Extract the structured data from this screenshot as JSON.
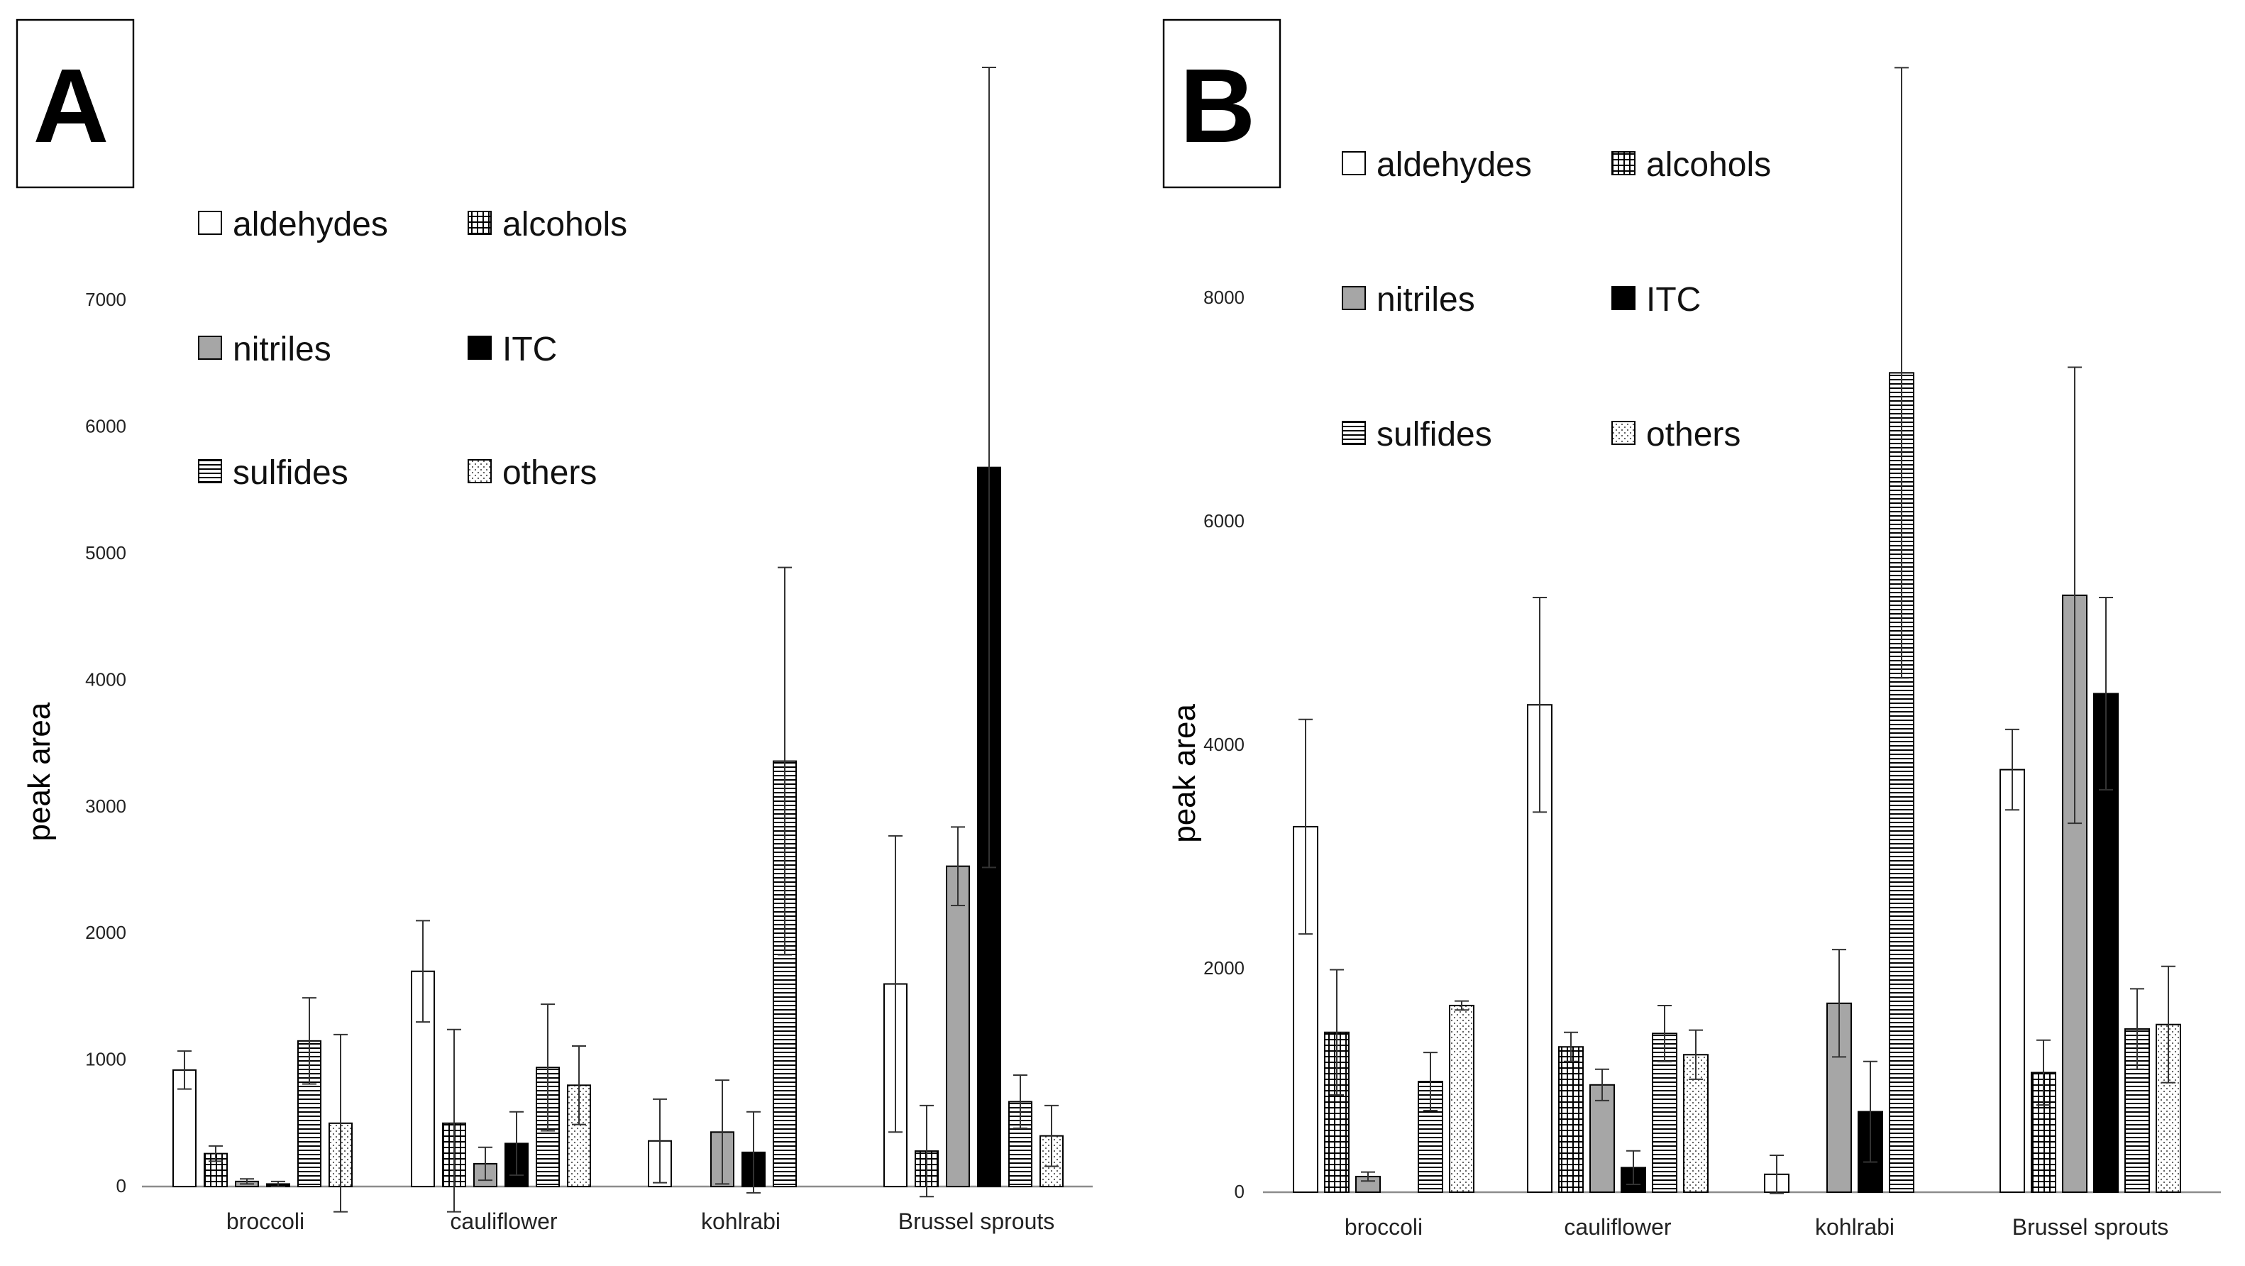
{
  "chart_data": [
    {
      "panel_label": "A",
      "type": "bar",
      "xlabel": "",
      "ylabel": "peak area",
      "ylim": [
        0,
        9000
      ],
      "yticks": [
        0,
        1000,
        2000,
        3000,
        4000,
        5000,
        6000,
        7000
      ],
      "gridlines": false,
      "legend_placement": "top-left",
      "categories": [
        "broccoli",
        "cauliflower",
        "kohlrabi",
        "Brussel sprouts"
      ],
      "series": [
        {
          "name": "aldehydes",
          "pattern": "white",
          "values": [
            920,
            1700,
            360,
            1600
          ],
          "errors": [
            150,
            400,
            330,
            1170
          ]
        },
        {
          "name": "alcohols",
          "pattern": "grid",
          "values": [
            260,
            500,
            0,
            280
          ],
          "errors": [
            60,
            740,
            0,
            360
          ]
        },
        {
          "name": "nitriles",
          "pattern": "gray",
          "values": [
            40,
            180,
            430,
            2530
          ],
          "errors": [
            20,
            130,
            410,
            310
          ]
        },
        {
          "name": "ITC",
          "pattern": "black",
          "values": [
            20,
            340,
            270,
            5680
          ],
          "errors": [
            20,
            250,
            320,
            3160
          ]
        },
        {
          "name": "sulfides",
          "pattern": "hlines",
          "values": [
            1150,
            940,
            3360,
            670
          ],
          "errors": [
            340,
            500,
            1530,
            210
          ]
        },
        {
          "name": "others",
          "pattern": "dots",
          "values": [
            500,
            800,
            0,
            400
          ],
          "errors": [
            700,
            310,
            0,
            240
          ]
        }
      ]
    },
    {
      "panel_label": "B",
      "type": "bar",
      "xlabel": "",
      "ylabel": "peak area",
      "ylim": [
        0,
        10000
      ],
      "yticks": [
        0,
        2000,
        4000,
        6000,
        8000
      ],
      "gridlines": false,
      "legend_placement": "top-left",
      "categories": [
        "broccoli",
        "cauliflower",
        "kohlrabi",
        "Brussel sprouts"
      ],
      "series": [
        {
          "name": "aldehydes",
          "pattern": "white",
          "values": [
            3270,
            4360,
            160,
            3780
          ],
          "errors": [
            960,
            960,
            170,
            360
          ]
        },
        {
          "name": "alcohols",
          "pattern": "grid",
          "values": [
            1430,
            1300,
            0,
            1070
          ],
          "errors": [
            560,
            130,
            0,
            290
          ]
        },
        {
          "name": "nitriles",
          "pattern": "gray",
          "values": [
            140,
            960,
            1690,
            5340
          ],
          "errors": [
            40,
            140,
            480,
            2040
          ]
        },
        {
          "name": "ITC",
          "pattern": "black",
          "values": [
            0,
            220,
            720,
            4460
          ],
          "errors": [
            0,
            150,
            450,
            860
          ]
        },
        {
          "name": "sulfides",
          "pattern": "hlines",
          "values": [
            990,
            1420,
            7330,
            1460
          ],
          "errors": [
            260,
            250,
            2730,
            360
          ]
        },
        {
          "name": "others",
          "pattern": "dots",
          "values": [
            1670,
            1230,
            0,
            1500
          ],
          "errors": [
            40,
            220,
            0,
            520
          ]
        }
      ]
    }
  ]
}
